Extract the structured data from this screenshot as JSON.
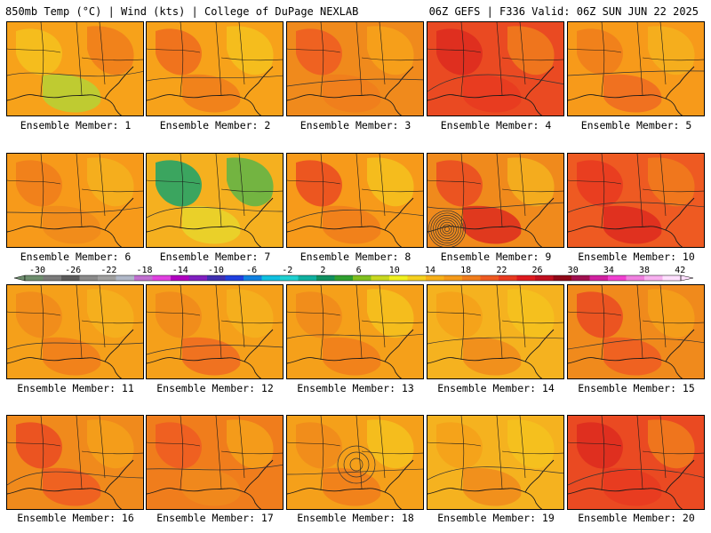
{
  "header": {
    "left": "850mb Temp (°C) | Wind (kts) | College of DuPage NEXLAB",
    "right": "06Z GEFS | F336 Valid: 06Z SUN JUN 22 2025"
  },
  "panels": [
    {
      "label": "Ensemble Member: 1",
      "base": "#f7a21a",
      "blobs": [
        {
          "c": "#f5c21f"
        },
        {
          "c": "#f07d1c"
        },
        {
          "c": "#b5d236"
        }
      ]
    },
    {
      "label": "Ensemble Member: 2",
      "base": "#f7a21a",
      "blobs": [
        {
          "c": "#ef6b1f"
        },
        {
          "c": "#f5c21f"
        },
        {
          "c": "#f07d1c"
        }
      ]
    },
    {
      "label": "Ensemble Member: 3",
      "base": "#f08a1c",
      "blobs": [
        {
          "c": "#ee5a22"
        },
        {
          "c": "#f7a21a"
        },
        {
          "c": "#f07d1c"
        }
      ]
    },
    {
      "label": "Ensemble Member: 4",
      "base": "#ea4a22",
      "blobs": [
        {
          "c": "#dd2a1f"
        },
        {
          "c": "#f07d1c"
        },
        {
          "c": "#e83a20"
        }
      ]
    },
    {
      "label": "Ensemble Member: 5",
      "base": "#f79a1a",
      "blobs": [
        {
          "c": "#f07d1c"
        },
        {
          "c": "#f5b21f"
        },
        {
          "c": "#ee6a22"
        }
      ]
    },
    {
      "label": "Ensemble Member: 6",
      "base": "#f79a1a",
      "blobs": [
        {
          "c": "#f07d1c"
        },
        {
          "c": "#f5b21f"
        },
        {
          "c": "#f08a1c"
        }
      ]
    },
    {
      "label": "Ensemble Member: 7",
      "base": "#f5b01f",
      "blobs": [
        {
          "c": "#1aa36b"
        },
        {
          "c": "#5cb548"
        },
        {
          "c": "#e8d62b"
        }
      ]
    },
    {
      "label": "Ensemble Member: 8",
      "base": "#f79a1a",
      "blobs": [
        {
          "c": "#ea4a22"
        },
        {
          "c": "#f5c21f"
        },
        {
          "c": "#f07d1c"
        }
      ]
    },
    {
      "label": "Ensemble Member: 9",
      "base": "#f08a1c",
      "blobs": [
        {
          "c": "#ea4a22"
        },
        {
          "c": "#f5b21f"
        },
        {
          "c": "#dd2a1f"
        }
      ]
    },
    {
      "label": "Ensemble Member: 10",
      "base": "#ee5a22",
      "blobs": [
        {
          "c": "#e83a20"
        },
        {
          "c": "#f07d1c"
        },
        {
          "c": "#dd2a1f"
        }
      ]
    },
    {
      "label": "Ensemble Member: 11",
      "base": "#f5a01a",
      "blobs": [
        {
          "c": "#f08a1c"
        },
        {
          "c": "#f5b21f"
        },
        {
          "c": "#f07d1c"
        }
      ]
    },
    {
      "label": "Ensemble Member: 12",
      "base": "#f5a01a",
      "blobs": [
        {
          "c": "#f08a1c"
        },
        {
          "c": "#f5b21f"
        },
        {
          "c": "#ee6a22"
        }
      ]
    },
    {
      "label": "Ensemble Member: 13",
      "base": "#f5a01a",
      "blobs": [
        {
          "c": "#f08a1c"
        },
        {
          "c": "#f5c21f"
        },
        {
          "c": "#f07d1c"
        }
      ]
    },
    {
      "label": "Ensemble Member: 14",
      "base": "#f5b21f",
      "blobs": [
        {
          "c": "#f5a01a"
        },
        {
          "c": "#f5c21f"
        },
        {
          "c": "#f08a1c"
        }
      ]
    },
    {
      "label": "Ensemble Member: 15",
      "base": "#f08a1c",
      "blobs": [
        {
          "c": "#ea4a22"
        },
        {
          "c": "#f5a01a"
        },
        {
          "c": "#ee5a22"
        }
      ]
    },
    {
      "label": "Ensemble Member: 16",
      "base": "#f08a1c",
      "blobs": [
        {
          "c": "#ea4a22"
        },
        {
          "c": "#f5a01a"
        },
        {
          "c": "#ee5a22"
        }
      ]
    },
    {
      "label": "Ensemble Member: 17",
      "base": "#f07d1c",
      "blobs": [
        {
          "c": "#ee5a22"
        },
        {
          "c": "#f5a01a"
        },
        {
          "c": "#f08a1c"
        }
      ]
    },
    {
      "label": "Ensemble Member: 18",
      "base": "#f5a01a",
      "blobs": [
        {
          "c": "#f08a1c"
        },
        {
          "c": "#f5c21f"
        },
        {
          "c": "#f07d1c"
        }
      ]
    },
    {
      "label": "Ensemble Member: 19",
      "base": "#f5b21f",
      "blobs": [
        {
          "c": "#f5a01a"
        },
        {
          "c": "#f5c21f"
        },
        {
          "c": "#f08a1c"
        }
      ]
    },
    {
      "label": "Ensemble Member: 20",
      "base": "#ea4a22",
      "blobs": [
        {
          "c": "#dd2a1f"
        },
        {
          "c": "#f07d1c"
        },
        {
          "c": "#e83a20"
        }
      ]
    }
  ],
  "colorbar": {
    "labels": [
      "-30",
      "-26",
      "-22",
      "-18",
      "-14",
      "-10",
      "-6",
      "-2",
      "2",
      "6",
      "10",
      "14",
      "18",
      "22",
      "26",
      "30",
      "34",
      "38",
      "42"
    ],
    "colors": [
      "#6e8e6e",
      "#7a7a7a",
      "#5a5a5a",
      "#8a8a8a",
      "#a0a0a0",
      "#b0b8c8",
      "#c070d0",
      "#e040e0",
      "#b000c0",
      "#8020c0",
      "#4030b0",
      "#2040e0",
      "#1080e0",
      "#10c0e0",
      "#20d0d0",
      "#10b0a0",
      "#109060",
      "#30a030",
      "#80c020",
      "#c8d820",
      "#f0f020",
      "#f5d020",
      "#f7b01a",
      "#f59a1a",
      "#f07d1c",
      "#ee5a22",
      "#e83a20",
      "#dd1a1f",
      "#c01020",
      "#900818",
      "#a01050",
      "#d020a0",
      "#f040d0",
      "#f080e0",
      "#f8b0f0",
      "#ffe0ff"
    ]
  }
}
